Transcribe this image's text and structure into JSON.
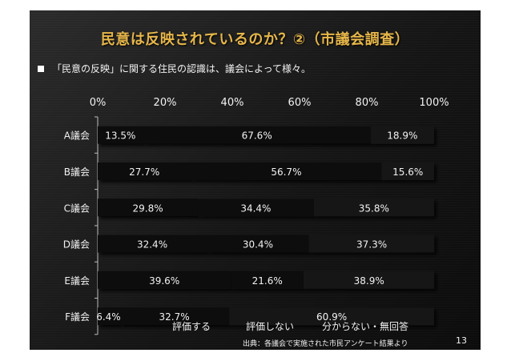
{
  "slide": {
    "title": "民意は反映されているのか？②（市議会調査）",
    "bullet": "「民意の反映」に関する住民の認識は、議会によって様々。",
    "source": "出典：各議会で実施された市民アンケート結果より",
    "page_number": "13"
  },
  "chart_data": {
    "type": "bar",
    "orientation": "horizontal",
    "stacked": "percent",
    "categories": [
      "A議会",
      "B議会",
      "C議会",
      "D議会",
      "E議会",
      "F議会"
    ],
    "series": [
      {
        "name": "評価する",
        "values": [
          13.5,
          27.7,
          29.8,
          32.4,
          39.6,
          6.4
        ],
        "labels": [
          "13.5%",
          "27.7%",
          "29.8%",
          "32.4%",
          "39.6%",
          "6.4%"
        ]
      },
      {
        "name": "評価しない",
        "values": [
          67.6,
          56.7,
          34.4,
          30.4,
          21.6,
          32.7
        ],
        "labels": [
          "67.6%",
          "56.7%",
          "34.4%",
          "30.4%",
          "21.6%",
          "32.7%"
        ]
      },
      {
        "name": "分からない・無回答",
        "values": [
          18.9,
          15.6,
          35.8,
          37.3,
          38.9,
          60.9
        ],
        "labels": [
          "18.9%",
          "15.6%",
          "35.8%",
          "37.3%",
          "38.9%",
          "60.9%"
        ]
      }
    ],
    "xlim": [
      0,
      100
    ],
    "x_ticks": [
      "0%",
      "20%",
      "40%",
      "60%",
      "80%",
      "100%"
    ],
    "legend_position": "bottom",
    "colors": [
      "#0b0b0b",
      "#101010",
      "#141414"
    ]
  }
}
